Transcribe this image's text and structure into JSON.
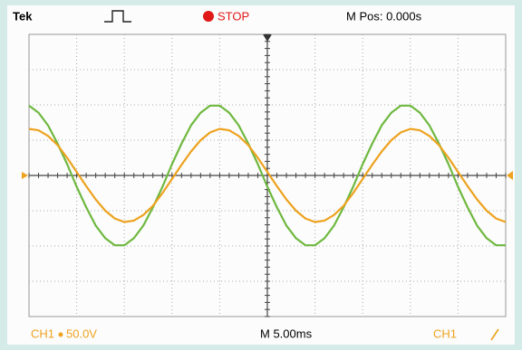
{
  "header": {
    "brand": "Tek",
    "state": "STOP",
    "position": "M Pos: 0.000s"
  },
  "footer": {
    "channel": "CH1",
    "scale": "50.0V",
    "timebase": "M 5.00ms",
    "trigger_source": "CH1"
  },
  "chart_data": {
    "type": "line",
    "x": [
      -25,
      -24,
      -23,
      -22,
      -21,
      -20,
      -19,
      -18,
      -17,
      -16,
      -15,
      -14,
      -13,
      -12,
      -11,
      -10,
      -9,
      -8,
      -7,
      -6,
      -5,
      -4,
      -3,
      -2,
      -1,
      0,
      1,
      2,
      3,
      4,
      5,
      6,
      7,
      8,
      9,
      10,
      11,
      12,
      13,
      14,
      15,
      16,
      17,
      18,
      19,
      20,
      21,
      22,
      23,
      24,
      25
    ],
    "xlim": [
      -25,
      25
    ],
    "ylim": [
      -200,
      200
    ],
    "series": [
      {
        "color": "#6fb83f",
        "values": [
          99,
          89,
          71,
          45,
          16,
          -16,
          -45,
          -71,
          -89,
          -99,
          -99,
          -89,
          -71,
          -45,
          -16,
          16,
          45,
          71,
          89,
          99,
          99,
          89,
          71,
          45,
          16,
          -16,
          -45,
          -71,
          -89,
          -99,
          -99,
          -89,
          -71,
          -45,
          -16,
          16,
          45,
          71,
          89,
          99,
          99,
          89,
          71,
          45,
          16,
          -16,
          -45,
          -71,
          -89,
          -99,
          -99
        ]
      },
      {
        "color": "#eea21f",
        "values": [
          66,
          64,
          56,
          43,
          25,
          5,
          -15,
          -34,
          -50,
          -61,
          -66,
          -64,
          -56,
          -43,
          -25,
          -5,
          15,
          34,
          50,
          61,
          66,
          64,
          56,
          43,
          25,
          5,
          -15,
          -34,
          -50,
          -61,
          -66,
          -64,
          -56,
          -43,
          -25,
          -5,
          15,
          34,
          50,
          61,
          66,
          64,
          56,
          43,
          25,
          5,
          -15,
          -34,
          -50,
          -61,
          -66
        ]
      }
    ]
  }
}
